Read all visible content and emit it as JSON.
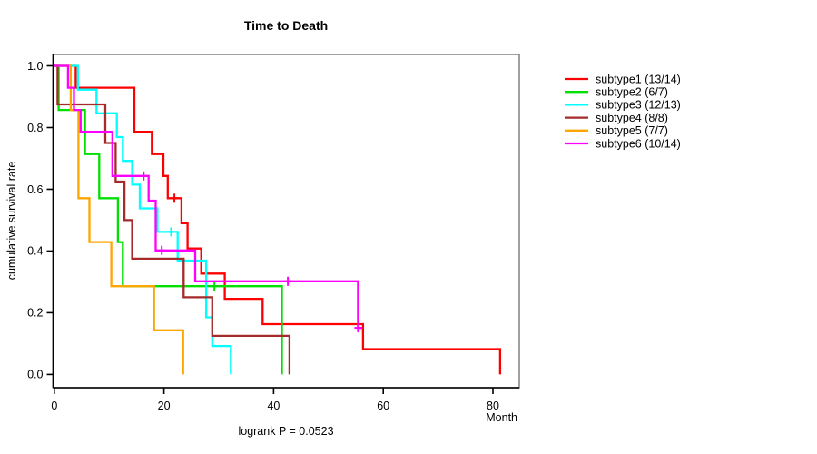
{
  "chart_data": {
    "type": "line",
    "variant": "kaplan-meier-step",
    "title": "Time to Death",
    "xlabel": "Month",
    "ylabel": "cumulative survival rate",
    "annotation": "logrank P = 0.0523",
    "xlim": [
      0,
      85
    ],
    "ylim": [
      0,
      1
    ],
    "x_ticks": [
      0,
      20,
      40,
      60,
      80
    ],
    "x_tick_labels": [
      "0",
      "20",
      "40",
      "60",
      "80"
    ],
    "y_ticks": [
      0.0,
      0.2,
      0.4,
      0.6,
      0.8,
      1.0
    ],
    "y_tick_labels": [
      "0.0",
      "0.2",
      "0.4",
      "0.6",
      "0.8",
      "1.0"
    ],
    "grid": false,
    "legend_position": "right-outside",
    "box_color": "#888888",
    "axis_color": "#000000",
    "series": [
      {
        "name": "subtype1",
        "label": "subtype1 (13/14)",
        "color": "#FF0000",
        "points": [
          [
            0,
            1
          ],
          [
            3.9,
            1
          ],
          [
            3.9,
            0.929
          ],
          [
            14.6,
            0.929
          ],
          [
            14.6,
            0.786
          ],
          [
            17.8,
            0.786
          ],
          [
            17.8,
            0.714
          ],
          [
            19.9,
            0.714
          ],
          [
            19.9,
            0.643
          ],
          [
            20.7,
            0.643
          ],
          [
            20.7,
            0.571
          ],
          [
            23.2,
            0.571
          ],
          [
            23.2,
            0.49
          ],
          [
            24.3,
            0.49
          ],
          [
            24.3,
            0.408
          ],
          [
            26.8,
            0.408
          ],
          [
            26.8,
            0.327
          ],
          [
            31.1,
            0.327
          ],
          [
            31.1,
            0.245
          ],
          [
            38,
            0.245
          ],
          [
            38,
            0.163
          ],
          [
            56.3,
            0.163
          ],
          [
            56.3,
            0.082
          ],
          [
            81.3,
            0.082
          ],
          [
            81.3,
            0
          ]
        ],
        "censor_marks": [
          [
            21.9,
            0.571
          ]
        ]
      },
      {
        "name": "subtype2",
        "label": "subtype2 (6/7)",
        "color": "#00E000",
        "points": [
          [
            0,
            1
          ],
          [
            0.8,
            1
          ],
          [
            0.8,
            0.857
          ],
          [
            5.6,
            0.857
          ],
          [
            5.6,
            0.714
          ],
          [
            8.2,
            0.714
          ],
          [
            8.2,
            0.571
          ],
          [
            11.6,
            0.571
          ],
          [
            11.6,
            0.429
          ],
          [
            12.5,
            0.429
          ],
          [
            12.5,
            0.286
          ],
          [
            41.5,
            0.286
          ],
          [
            41.5,
            0
          ]
        ],
        "censor_marks": [
          [
            29.2,
            0.286
          ]
        ]
      },
      {
        "name": "subtype3",
        "label": "subtype3 (12/13)",
        "color": "#00FFFF",
        "points": [
          [
            0,
            1
          ],
          [
            4.3,
            1
          ],
          [
            4.3,
            0.923
          ],
          [
            7.7,
            0.923
          ],
          [
            7.7,
            0.846
          ],
          [
            11.4,
            0.846
          ],
          [
            11.4,
            0.769
          ],
          [
            12.5,
            0.769
          ],
          [
            12.5,
            0.692
          ],
          [
            14.2,
            0.692
          ],
          [
            14.2,
            0.615
          ],
          [
            15.6,
            0.615
          ],
          [
            15.6,
            0.538
          ],
          [
            18.8,
            0.538
          ],
          [
            18.8,
            0.462
          ],
          [
            22.5,
            0.462
          ],
          [
            22.5,
            0.369
          ],
          [
            27.7,
            0.369
          ],
          [
            27.7,
            0.185
          ],
          [
            28.8,
            0.185
          ],
          [
            28.8,
            0.092
          ],
          [
            32.2,
            0.092
          ],
          [
            32.2,
            0
          ]
        ],
        "censor_marks": [
          [
            21.3,
            0.462
          ]
        ]
      },
      {
        "name": "subtype4",
        "label": "subtype4 (8/8)",
        "color": "#A52A2A",
        "points": [
          [
            0,
            1
          ],
          [
            0.6,
            1
          ],
          [
            0.6,
            0.875
          ],
          [
            9.3,
            0.875
          ],
          [
            9.3,
            0.75
          ],
          [
            11.2,
            0.75
          ],
          [
            11.2,
            0.625
          ],
          [
            12.8,
            0.625
          ],
          [
            12.8,
            0.5
          ],
          [
            14.2,
            0.5
          ],
          [
            14.2,
            0.375
          ],
          [
            23.6,
            0.375
          ],
          [
            23.6,
            0.25
          ],
          [
            28.8,
            0.25
          ],
          [
            28.8,
            0.125
          ],
          [
            42.9,
            0.125
          ],
          [
            42.9,
            0
          ]
        ],
        "censor_marks": []
      },
      {
        "name": "subtype5",
        "label": "subtype5 (7/7)",
        "color": "#FFA500",
        "points": [
          [
            0,
            1
          ],
          [
            3,
            1
          ],
          [
            3,
            0.857
          ],
          [
            4.4,
            0.857
          ],
          [
            4.4,
            0.571
          ],
          [
            6.4,
            0.571
          ],
          [
            6.4,
            0.429
          ],
          [
            10.4,
            0.429
          ],
          [
            10.4,
            0.286
          ],
          [
            18.2,
            0.286
          ],
          [
            18.2,
            0.143
          ],
          [
            23.5,
            0.143
          ],
          [
            23.5,
            0
          ]
        ],
        "censor_marks": []
      },
      {
        "name": "subtype6",
        "label": "subtype6 (10/14)",
        "color": "#FF00FF",
        "points": [
          [
            0,
            1
          ],
          [
            2.5,
            1
          ],
          [
            2.5,
            0.929
          ],
          [
            3.6,
            0.929
          ],
          [
            3.6,
            0.857
          ],
          [
            4.8,
            0.857
          ],
          [
            4.8,
            0.786
          ],
          [
            10.6,
            0.786
          ],
          [
            10.6,
            0.643
          ],
          [
            17.2,
            0.643
          ],
          [
            17.2,
            0.563
          ],
          [
            18.5,
            0.563
          ],
          [
            18.5,
            0.402
          ],
          [
            25.7,
            0.402
          ],
          [
            25.7,
            0.302
          ],
          [
            55.4,
            0.302
          ],
          [
            55.4,
            0.151
          ],
          [
            56.2,
            0.151
          ]
        ],
        "censor_marks": [
          [
            16.3,
            0.643
          ],
          [
            19.6,
            0.402
          ],
          [
            42.6,
            0.302
          ],
          [
            55.4,
            0.151
          ]
        ]
      }
    ]
  }
}
